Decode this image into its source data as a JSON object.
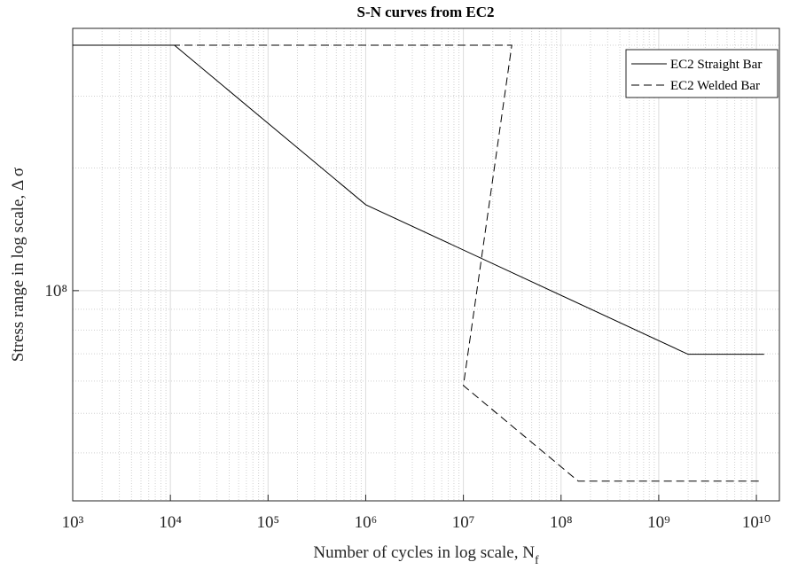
{
  "chart_data": {
    "type": "line",
    "title": "S-N curves from EC2",
    "xlabel": {
      "text": "Number of cycles in log scale, N",
      "subscript": "f"
    },
    "ylabel": "Stress range in log scale, Δ σ",
    "xscale": "log",
    "yscale": "log",
    "grid": true,
    "minor_grid": true,
    "legend": "northeast",
    "xlim": [
      1000,
      17200000000
    ],
    "ylim": [
      30500000,
      440000000
    ],
    "xticks": [
      {
        "value": 1000,
        "label": "10³"
      },
      {
        "value": 10000,
        "label": "10⁴"
      },
      {
        "value": 100000,
        "label": "10⁵"
      },
      {
        "value": 1000000,
        "label": "10⁶"
      },
      {
        "value": 10000000,
        "label": "10⁷"
      },
      {
        "value": 100000000,
        "label": "10⁸"
      },
      {
        "value": 1000000000,
        "label": "10⁹"
      },
      {
        "value": 10000000000,
        "label": "10¹⁰"
      }
    ],
    "yticks": [
      {
        "value": 100000000,
        "label": "10⁸"
      }
    ],
    "series": [
      {
        "name": "EC2 Straight Bar",
        "color": "#000000",
        "dash": "solid",
        "x": [
          1000,
          11000,
          1000000,
          2000000000,
          12000000000
        ],
        "values": [
          400000000,
          400000000,
          162500000,
          69800000,
          69800000
        ]
      },
      {
        "name": "EC2 Welded Bar",
        "color": "#000000",
        "dash": "dashed",
        "x": [
          1000,
          31300000,
          10000000,
          150000000,
          11000000000
        ],
        "values": [
          400000000,
          400000000,
          58500000,
          34100000,
          34100000
        ]
      }
    ]
  }
}
